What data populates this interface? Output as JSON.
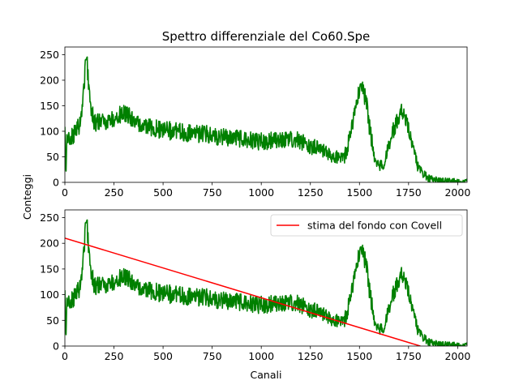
{
  "chart_data": {
    "type": "line",
    "title": "Spettro differenziale del Co60.Spe",
    "ylabel": "Conteggi",
    "xlabel": "Canali",
    "panels": [
      {
        "xlim": [
          0,
          2048
        ],
        "ylim": [
          0,
          265
        ],
        "xticks": [
          0,
          250,
          500,
          750,
          1000,
          1250,
          1500,
          1750,
          2000
        ],
        "yticks": [
          0,
          50,
          100,
          150,
          200,
          250
        ],
        "series": [
          {
            "color": "#008000",
            "x": [
              0,
              5,
              10,
              20,
              40,
              60,
              80,
              95,
              105,
              112,
              120,
              135,
              150,
              175,
              200,
              250,
              275,
              300,
              325,
              350,
              400,
              450,
              500,
              550,
              600,
              650,
              700,
              750,
              800,
              850,
              900,
              950,
              1000,
              1050,
              1100,
              1150,
              1200,
              1250,
              1300,
              1350,
              1400,
              1425,
              1450,
              1475,
              1500,
              1515,
              1535,
              1550,
              1575,
              1600,
              1620,
              1650,
              1680,
              1700,
              1715,
              1735,
              1750,
              1775,
              1800,
              1850,
              1900,
              1950,
              2000,
              2048
            ],
            "y": [
              100,
              5,
              90,
              85,
              90,
              100,
              120,
              175,
              230,
              240,
              195,
              145,
              115,
              118,
              118,
              125,
              130,
              135,
              130,
              120,
              110,
              105,
              103,
              100,
              97,
              95,
              95,
              92,
              90,
              88,
              86,
              82,
              80,
              82,
              85,
              85,
              80,
              72,
              63,
              55,
              48,
              52,
              85,
              140,
              178,
              180,
              158,
              110,
              52,
              30,
              32,
              68,
              110,
              132,
              142,
              130,
              108,
              65,
              25,
              8,
              3,
              2,
              2,
              1
            ]
          }
        ]
      },
      {
        "xlim": [
          0,
          2048
        ],
        "ylim": [
          0,
          265
        ],
        "xticks": [
          0,
          250,
          500,
          750,
          1000,
          1250,
          1500,
          1750,
          2000
        ],
        "yticks": [
          0,
          50,
          100,
          150,
          200,
          250
        ],
        "series": [
          {
            "color": "#008000",
            "x": [
              0,
              5,
              10,
              20,
              40,
              60,
              80,
              95,
              105,
              112,
              120,
              135,
              150,
              175,
              200,
              250,
              275,
              300,
              325,
              350,
              400,
              450,
              500,
              550,
              600,
              650,
              700,
              750,
              800,
              850,
              900,
              950,
              1000,
              1050,
              1100,
              1150,
              1200,
              1250,
              1300,
              1350,
              1400,
              1425,
              1450,
              1475,
              1500,
              1515,
              1535,
              1550,
              1575,
              1600,
              1620,
              1650,
              1680,
              1700,
              1715,
              1735,
              1750,
              1775,
              1800,
              1850,
              1900,
              1950,
              2000,
              2048
            ],
            "y": [
              100,
              5,
              90,
              85,
              90,
              100,
              120,
              175,
              230,
              240,
              195,
              145,
              115,
              118,
              118,
              125,
              130,
              135,
              130,
              120,
              110,
              105,
              103,
              100,
              97,
              95,
              95,
              92,
              90,
              88,
              86,
              82,
              80,
              82,
              85,
              85,
              80,
              72,
              63,
              55,
              48,
              52,
              85,
              140,
              178,
              180,
              158,
              110,
              52,
              30,
              32,
              68,
              110,
              132,
              142,
              130,
              108,
              65,
              25,
              8,
              3,
              2,
              2,
              1
            ]
          },
          {
            "name": "stima del fondo con Covell",
            "color": "#ff0000",
            "x": [
              0,
              1810
            ],
            "y": [
              210,
              0
            ]
          }
        ],
        "legend": "top-right"
      }
    ]
  }
}
